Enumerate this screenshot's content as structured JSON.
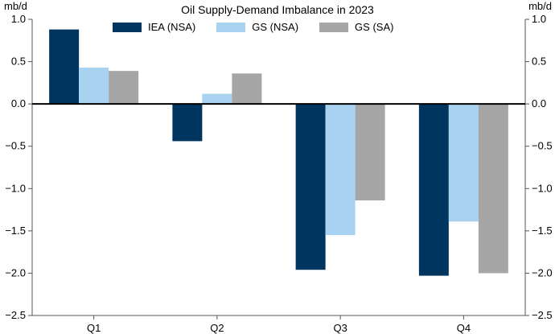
{
  "chart_data": {
    "type": "bar",
    "title": "Oil Supply-Demand Imbalance in 2023",
    "y_unit_left": "mb/d",
    "y_unit_right": "mb/d",
    "categories": [
      "Q1",
      "Q2",
      "Q3",
      "Q4"
    ],
    "series": [
      {
        "name": "IEA (NSA)",
        "color": "#003560",
        "values": [
          0.88,
          -0.44,
          -1.96,
          -2.03
        ]
      },
      {
        "name": "GS (NSA)",
        "color": "#a9d2f1",
        "values": [
          0.43,
          0.12,
          -1.55,
          -1.39
        ]
      },
      {
        "name": "GS (SA)",
        "color": "#a6a6a6",
        "values": [
          0.39,
          0.36,
          -1.14,
          -2.0
        ]
      }
    ],
    "ylim": [
      -2.5,
      1.0
    ],
    "yticks": [
      "1.0",
      "0.5",
      "0.0",
      "−0.5",
      "−1.0",
      "−1.5",
      "−2.0",
      "−2.5"
    ],
    "ytick_values": [
      1.0,
      0.5,
      0.0,
      -0.5,
      -1.0,
      -1.5,
      -2.0,
      -2.5
    ],
    "legend_position": "top-center",
    "grid": false
  }
}
